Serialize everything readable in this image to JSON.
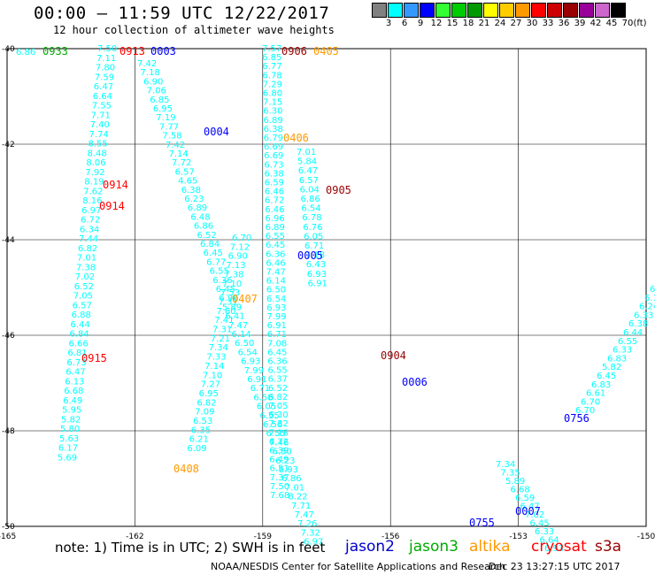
{
  "title": "00:00 – 11:59 UTC 12/22/2017",
  "subtitle": "12 hour collection of altimeter wave heights",
  "legend": {
    "values": [
      "3",
      "6",
      "9",
      "12",
      "15",
      "18",
      "21",
      "24",
      "27",
      "30",
      "33",
      "36",
      "39",
      "42",
      "45",
      "70"
    ],
    "unit": "(ft)",
    "colors": [
      "#808080",
      "#00ffff",
      "#3399ff",
      "#0000ff",
      "#33ff33",
      "#00cc00",
      "#009900",
      "#ffff00",
      "#ffcc00",
      "#ff9900",
      "#ff0000",
      "#cc0000",
      "#990000",
      "#990099",
      "#cc66cc",
      "#000000"
    ]
  },
  "axes": {
    "x_ticks": [
      "-165",
      "-162",
      "-159",
      "-156",
      "-153",
      "-150"
    ],
    "y_ticks": [
      "-40",
      "-42",
      "-44",
      "-46",
      "-48",
      "-50"
    ]
  },
  "swh_color": "#00ffff",
  "tracks": [
    {
      "label": "0933",
      "color": "#00aa00",
      "values": [
        "7.50",
        "7.11",
        "7.80",
        "7.59",
        "6.47",
        "6.64",
        "7.55",
        "7.71",
        "7.40",
        "7.74",
        "8.55",
        "8.48",
        "8.06",
        "7.92",
        "8.19",
        "7.62",
        "8.16",
        "6.97",
        "6.72",
        "6.34",
        "7.44",
        "6.82",
        "7.01",
        "7.38",
        "7.02",
        "6.52",
        "7.05",
        "6.57",
        "6.88",
        "6.44",
        "6.84",
        "6.66",
        "6.81",
        "6.73",
        "6.47",
        "6.13",
        "6.68",
        "6.49",
        "5.95",
        "5.82",
        "5.80",
        "5.63",
        "6.17",
        "5.69"
      ]
    },
    {
      "label": "0913",
      "color": "#ff0000",
      "values": [
        "7.42",
        "7.18",
        "6.90",
        "7.06",
        "6.85",
        "6.95",
        "7.19",
        "7.77",
        "7.58",
        "7.42",
        "7.14",
        "7.72",
        "6.57",
        "4.65",
        "6.38",
        "6.23",
        "6.89",
        "6.48",
        "6.86",
        "6.52",
        "6.84",
        "6.45",
        "6.77",
        "6.55",
        "6.36",
        "6.45",
        "6.96",
        "5.89",
        "6.41",
        "7.47",
        "6.14",
        "6.50",
        "6.54",
        "6.93",
        "7.99",
        "6.91",
        "6.71",
        "6.58",
        "6.05",
        "6.55",
        "6.56",
        "6.55",
        "7.46",
        "6.50",
        "6.23",
        "6.93",
        "6.86",
        "7.01",
        "8.22",
        "7.71",
        "7.47",
        "7.26",
        "7.32",
        "6.97"
      ]
    },
    {
      "label": "0003",
      "color": "#0000ff"
    },
    {
      "label": "0004",
      "color": "#0000ff"
    },
    {
      "label": "0906",
      "color": "#990000",
      "values": [
        "7.57",
        "6.85",
        "6.77",
        "6.78",
        "7.29",
        "6.80",
        "7.15",
        "6.30",
        "6.89",
        "6.38",
        "6.79",
        "6.69",
        "6.69",
        "6.73",
        "6.38",
        "6.59",
        "6.46",
        "6.72",
        "6.46",
        "6.96",
        "6.89",
        "6.55",
        "6.45",
        "6.36",
        "6.46",
        "7.47",
        "6.14",
        "6.50",
        "6.54",
        "6.93",
        "7.99",
        "6.91",
        "6.71",
        "7.08",
        "6.45",
        "6.36",
        "6.55",
        "6.37",
        "6.52",
        "6.82",
        "7.05",
        "6.30",
        "7.32",
        "7.18",
        "6.72",
        "6.39",
        "6.49",
        "6.51",
        "7.37",
        "7.50",
        "7.68"
      ]
    },
    {
      "label": "0405",
      "color": "#ff9900"
    },
    {
      "label": "0406",
      "color": "#ff9900",
      "values": [
        "7.01",
        "5.84",
        "6.47",
        "6.57",
        "6.04",
        "6.86",
        "6.54",
        "6.78",
        "6.76",
        "6.05",
        "6.71",
        "7.18",
        "6.43",
        "6.93",
        "6.91"
      ]
    },
    {
      "label": "0905",
      "color": "#990000"
    },
    {
      "label": "0914",
      "color": "#ff0000"
    },
    {
      "label": "0914",
      "color": "#ff0000"
    },
    {
      "label": "0005",
      "color": "#0000ff"
    },
    {
      "label": "0407",
      "color": "#ff9900",
      "values": [
        "6.70",
        "7.12",
        "6.90",
        "7.13",
        "7.38",
        "7.10",
        "7.53",
        "7.31",
        "7.60",
        "7.41",
        "7.31",
        "7.21",
        "7.34",
        "7.33",
        "7.14",
        "7.10",
        "7.27",
        "6.95",
        "6.82",
        "7.09",
        "6.53",
        "6.35",
        "6.21",
        "6.09"
      ]
    },
    {
      "label": "0915",
      "color": "#ff0000"
    },
    {
      "label": "0904",
      "color": "#990000"
    },
    {
      "label": "0006",
      "color": "#0000ff"
    },
    {
      "label": "0408",
      "color": "#ff9900"
    },
    {
      "label": "0755",
      "color": "#0000ff",
      "values": [
        "7.34",
        "7.35",
        "5.89",
        "6.68",
        "6.59",
        "6.47",
        "7.02",
        "6.45",
        "6.33",
        "6.64",
        "6.93"
      ]
    },
    {
      "label": "0756",
      "color": "#0000ff",
      "values": [
        "6.2",
        "6.19",
        "6.24",
        "6.33",
        "6.38",
        "6.44",
        "6.55",
        "6.33",
        "6.83",
        "5.82",
        "6.45",
        "6.83",
        "6.61",
        "6.70",
        "6.70"
      ]
    },
    {
      "label": "0007",
      "color": "#0000ff"
    }
  ],
  "edge_left_value": "6.86",
  "note": "note:  1) Time is in UTC;  2) SWH is in feet",
  "satellites": [
    {
      "name": "jason2",
      "color": "#0000cc"
    },
    {
      "name": "jason3",
      "color": "#00aa00"
    },
    {
      "name": "altika",
      "color": "#ff9900"
    },
    {
      "name": "cryosat",
      "color": "#ff0000"
    },
    {
      "name": "s3a",
      "color": "#990000"
    }
  ],
  "credit": "NOAA/NESDIS Center for Satellite Applications and Research",
  "timestamp": "Dec 23 13:27:15 UTC 2017"
}
